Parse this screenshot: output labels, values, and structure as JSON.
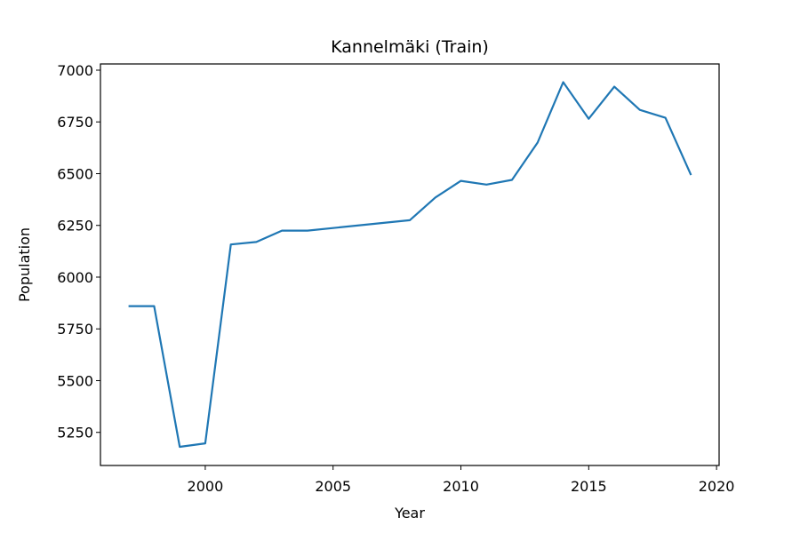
{
  "chart_data": {
    "type": "line",
    "title": "Kannelmäki (Train)",
    "xlabel": "Year",
    "ylabel": "Population",
    "xlim": [
      1995.9,
      2020.1
    ],
    "ylim": [
      5090,
      7030
    ],
    "xticks": [
      2000,
      2005,
      2010,
      2015,
      2020
    ],
    "yticks": [
      5250,
      5500,
      5750,
      6000,
      6250,
      6500,
      6750,
      7000
    ],
    "grid": false,
    "legend": "none",
    "series": [
      {
        "color": "#1f77b4",
        "x": [
          1997,
          1998,
          1999,
          2000,
          2001,
          2002,
          2003,
          2004,
          2008,
          2009,
          2010,
          2011,
          2012,
          2013,
          2014,
          2015,
          2016,
          2017,
          2018,
          2019
        ],
        "values": [
          5860,
          5860,
          5180,
          5197,
          6158,
          6170,
          6225,
          6225,
          6275,
          6385,
          6465,
          6447,
          6470,
          6650,
          6942,
          6765,
          6920,
          6808,
          6770,
          6493
        ]
      }
    ]
  }
}
